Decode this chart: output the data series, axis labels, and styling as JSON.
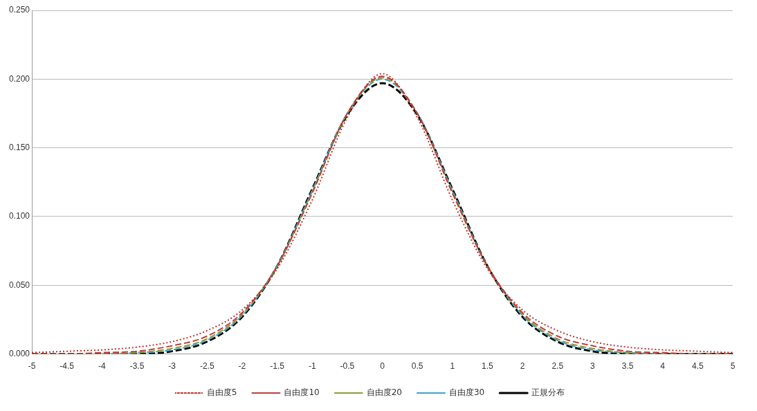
{
  "chart_data": {
    "type": "line",
    "x": [
      -5,
      -4.5,
      -4,
      -3.5,
      -3,
      -2.5,
      -2,
      -1.5,
      -1,
      -0.5,
      0,
      0.5,
      1,
      1.5,
      2,
      2.5,
      3,
      3.5,
      4,
      4.5,
      5
    ],
    "series": [
      {
        "name": "自由度5",
        "color": "#c0302a",
        "line_style": "dotted",
        "values": [
          0.001,
          0.002,
          0.003,
          0.005,
          0.009,
          0.017,
          0.032,
          0.062,
          0.112,
          0.172,
          0.204,
          0.172,
          0.112,
          0.062,
          0.032,
          0.017,
          0.009,
          0.005,
          0.003,
          0.002,
          0.001
        ]
      },
      {
        "name": "自由度10",
        "color": "#b8413c",
        "line_style": "dashed",
        "values": [
          0.0,
          0.0,
          0.001,
          0.002,
          0.006,
          0.013,
          0.03,
          0.064,
          0.117,
          0.175,
          0.202,
          0.175,
          0.117,
          0.064,
          0.03,
          0.013,
          0.006,
          0.002,
          0.001,
          0.0,
          0.0
        ]
      },
      {
        "name": "自由度20",
        "color": "#8f9a3a",
        "line_style": "dashed",
        "values": [
          0.0,
          0.0,
          0.0,
          0.001,
          0.004,
          0.011,
          0.029,
          0.064,
          0.118,
          0.175,
          0.201,
          0.175,
          0.118,
          0.064,
          0.029,
          0.011,
          0.004,
          0.001,
          0.0,
          0.0,
          0.0
        ]
      },
      {
        "name": "自由度30",
        "color": "#3ba3c8",
        "line_style": "dashed",
        "values": [
          null,
          null,
          0.0,
          0.001,
          0.003,
          0.01,
          0.028,
          0.064,
          0.119,
          0.175,
          0.2,
          0.175,
          0.119,
          0.064,
          0.028,
          0.01,
          0.003,
          0.001,
          0.0,
          null,
          null
        ]
      },
      {
        "name": "正規分布",
        "color": "#000000",
        "line_style": "dashed",
        "values": [
          0.0,
          0.0,
          0.0,
          0.0,
          0.002,
          0.009,
          0.027,
          0.064,
          0.12,
          0.174,
          0.197,
          0.174,
          0.12,
          0.064,
          0.027,
          0.009,
          0.002,
          0.0,
          0.0,
          0.0,
          0.0
        ]
      }
    ],
    "xlim": [
      -5,
      5
    ],
    "xticks": [
      -5,
      -4.5,
      -4,
      -3.5,
      -3,
      -2.5,
      -2,
      -1.5,
      -1,
      -0.5,
      0,
      0.5,
      1,
      1.5,
      2,
      2.5,
      3,
      3.5,
      4,
      4.5,
      5
    ],
    "ylim": [
      0,
      0.25
    ],
    "yticks": [
      {
        "value": 0,
        "label": "0.000"
      },
      {
        "value": 0.05,
        "label": "0.050"
      },
      {
        "value": 0.1,
        "label": "0.100"
      },
      {
        "value": 0.15,
        "label": "0.150"
      },
      {
        "value": 0.2,
        "label": "0.200"
      },
      {
        "value": 0.25,
        "label": "0.250"
      }
    ],
    "grid": "y",
    "legend": "bottom",
    "marker": "none"
  }
}
